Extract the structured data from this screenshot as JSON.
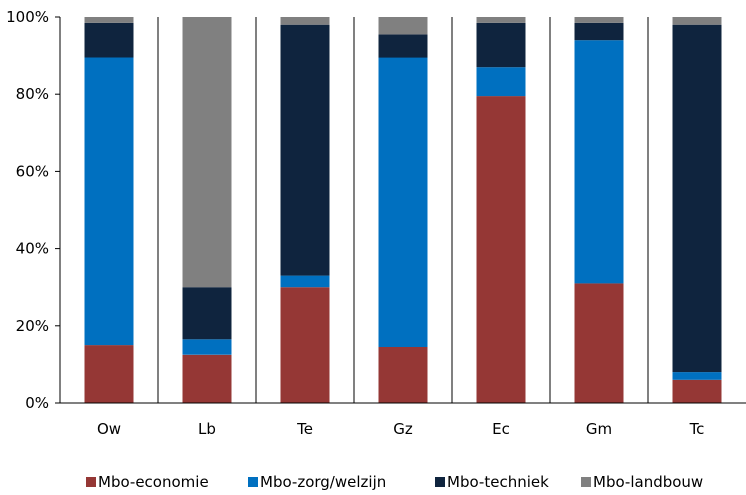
{
  "chart_data": {
    "type": "bar",
    "stacked": true,
    "normalized": true,
    "categories": [
      "Ow",
      "Lb",
      "Te",
      "Gz",
      "Ec",
      "Gm",
      "Tc"
    ],
    "series": [
      {
        "name": "Mbo-economie",
        "color": "#953735",
        "values": [
          15,
          12.5,
          30,
          14.5,
          79.5,
          31,
          6
        ]
      },
      {
        "name": "Mbo-zorg/welzijn",
        "color": "#0070C0",
        "values": [
          74.5,
          4,
          3,
          75,
          7.5,
          63,
          2
        ]
      },
      {
        "name": "Mbo-techniek",
        "color": "#0F243E",
        "values": [
          9,
          13.5,
          65,
          6,
          11.5,
          4.5,
          90
        ]
      },
      {
        "name": "Mbo-landbouw",
        "color": "#808080",
        "values": [
          1.5,
          70,
          2,
          4.5,
          1.5,
          1.5,
          2
        ]
      }
    ],
    "yticks": [
      "0%",
      "20%",
      "40%",
      "60%",
      "80%",
      "100%"
    ],
    "ylim": [
      0,
      100
    ],
    "grid": false,
    "legend_position": "bottom"
  }
}
